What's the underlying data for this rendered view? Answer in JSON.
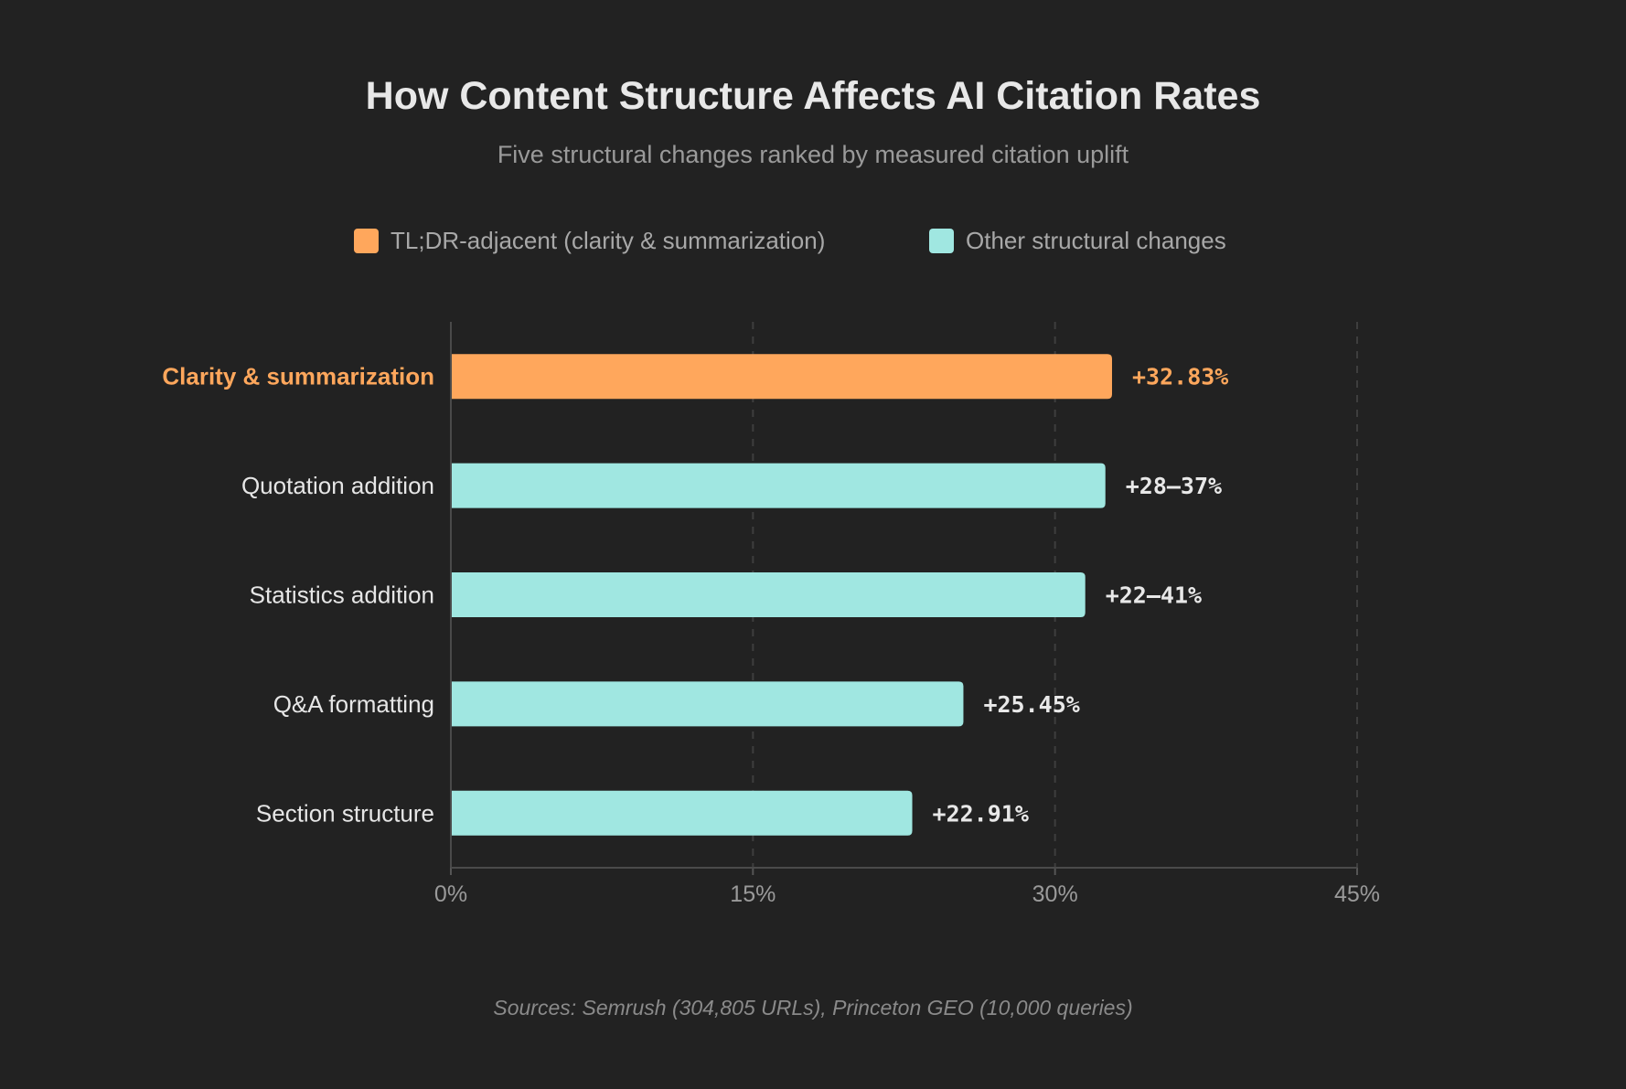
{
  "chart_data": {
    "type": "bar",
    "orientation": "horizontal",
    "title": "How Content Structure Affects AI Citation Rates",
    "subtitle": "Five structural changes ranked by measured citation uplift",
    "legend": [
      {
        "label": "TL;DR-adjacent (clarity & summarization)",
        "color": "#FFA75C"
      },
      {
        "label": "Other structural changes",
        "color": "#A0E7E1"
      }
    ],
    "legend_placement": "top-center",
    "categories": [
      "Clarity & summarization",
      "Quotation addition",
      "Statistics addition",
      "Q&A formatting",
      "Section structure"
    ],
    "values": [
      32.83,
      32.5,
      31.5,
      25.45,
      22.91
    ],
    "data_labels": [
      "+32.83%",
      "+28–37%",
      "+22–41%",
      "+25.45%",
      "+22.91%"
    ],
    "highlight": [
      true,
      false,
      false,
      false,
      false
    ],
    "xlim": [
      0,
      45
    ],
    "xticks": [
      0,
      15,
      30,
      45
    ],
    "xtick_labels": [
      "0%",
      "15%",
      "30%",
      "45%"
    ],
    "grid": "vertical dashed",
    "xlabel": "",
    "ylabel": "",
    "source": "Sources: Semrush (304,805 URLs), Princeton GEO (10,000 queries)",
    "colors": {
      "background": "#222222",
      "highlight": "#FFA75C",
      "other": "#A0E7E1"
    }
  }
}
